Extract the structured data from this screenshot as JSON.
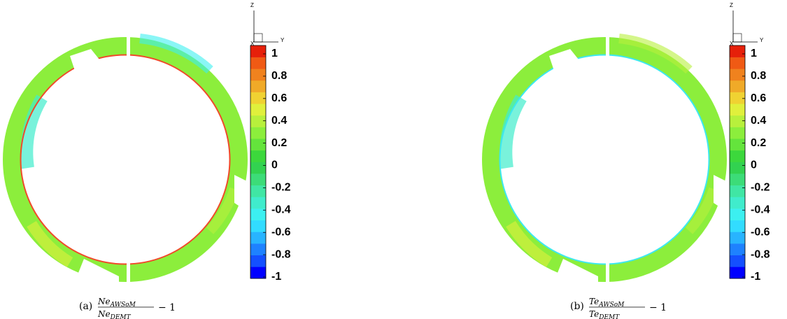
{
  "chart_data": [
    {
      "type": "contour",
      "caption": {
        "label": "(a)",
        "numerator": {
          "base": "Ne",
          "sub": "AWSoM"
        },
        "denominator": {
          "base": "Ne",
          "sub": "DEMT"
        },
        "suffix": "− 1"
      },
      "axes_triad": {
        "z": "Z",
        "y": "Y",
        "x": "X"
      },
      "edge_color": "#f04a2a",
      "zlim": [
        -1,
        1
      ],
      "zticks": [
        1,
        0.8,
        0.6,
        0.4,
        0.2,
        0,
        -0.2,
        -0.4,
        -0.6,
        -0.8,
        -1
      ],
      "colors": [
        "#0000ff",
        "#1450ff",
        "#1e82ff",
        "#28b4ff",
        "#32dcff",
        "#3cf0f0",
        "#40eccc",
        "#40e6a4",
        "#3cdc78",
        "#32d250",
        "#3cd83c",
        "#64e43c",
        "#8cee3c",
        "#b8f03c",
        "#e0f03c",
        "#f0d232",
        "#f0aa28",
        "#f0821e",
        "#f05a14",
        "#e6200a"
      ]
    },
    {
      "type": "contour",
      "caption": {
        "label": "(b)",
        "numerator": {
          "base": "Te",
          "sub": "AWSoM"
        },
        "denominator": {
          "base": "Te",
          "sub": "DEMT"
        },
        "suffix": "− 1"
      },
      "axes_triad": {
        "z": "Z",
        "y": "Y",
        "x": "X"
      },
      "edge_color": "#3ce8f0",
      "zlim": [
        -1,
        1
      ],
      "zticks": [
        1,
        0.8,
        0.6,
        0.4,
        0.2,
        0,
        -0.2,
        -0.4,
        -0.6,
        -0.8,
        -1
      ],
      "colors": [
        "#0000ff",
        "#1450ff",
        "#1e82ff",
        "#28b4ff",
        "#32dcff",
        "#3cf0f0",
        "#40eccc",
        "#40e6a4",
        "#3cdc78",
        "#32d250",
        "#3cd83c",
        "#64e43c",
        "#8cee3c",
        "#b8f03c",
        "#e0f03c",
        "#f0d232",
        "#f0aa28",
        "#f0821e",
        "#f05a14",
        "#e6200a"
      ]
    }
  ]
}
